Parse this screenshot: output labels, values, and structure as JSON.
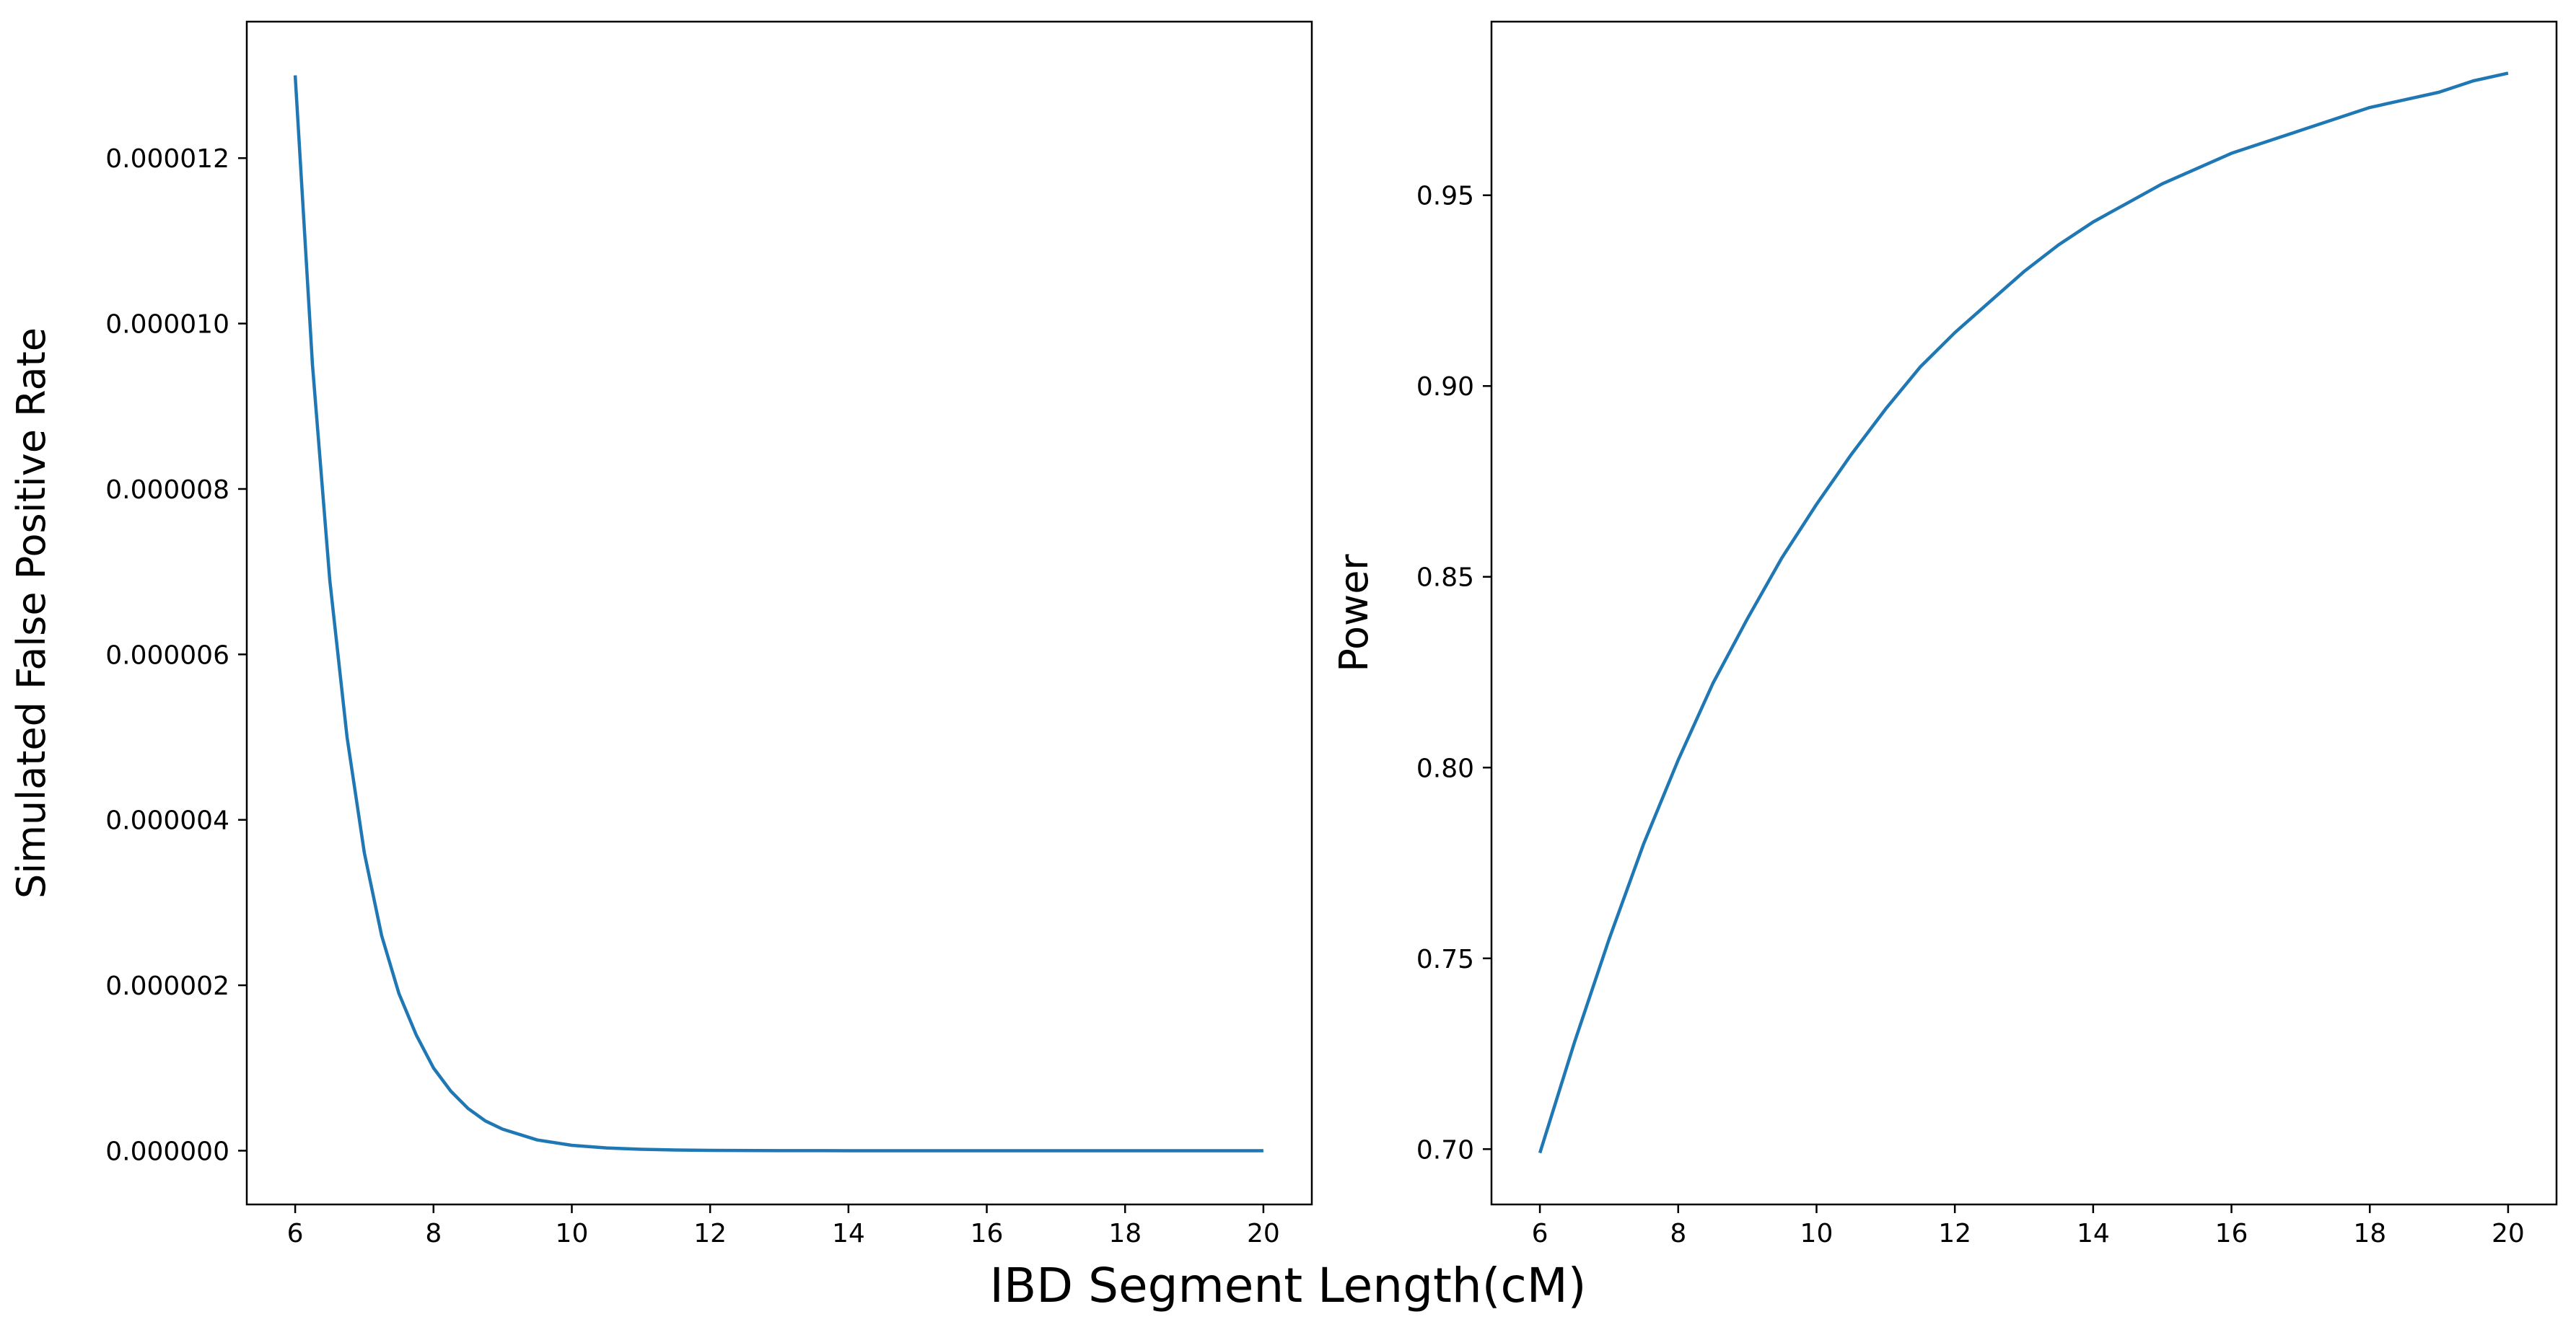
{
  "figure": {
    "xlabel": "IBD Segment Length(cM)"
  },
  "colors": {
    "series": "#1f77b4"
  },
  "chart_data": [
    {
      "type": "line",
      "xlabel": "",
      "ylabel": "Simulated False Positive Rate",
      "xlim": [
        5.3,
        20.7
      ],
      "ylim": [
        -6.5e-07,
        1.365e-05
      ],
      "xticks": [
        6,
        8,
        10,
        12,
        14,
        16,
        18,
        20
      ],
      "xtick_labels": [
        "6",
        "8",
        "10",
        "12",
        "14",
        "16",
        "18",
        "20"
      ],
      "yticks": [
        0,
        2e-06,
        4e-06,
        6e-06,
        8e-06,
        1e-05,
        1.2e-05
      ],
      "ytick_labels": [
        "0.000000",
        "0.000002",
        "0.000004",
        "0.000006",
        "0.000008",
        "0.000010",
        "0.000012"
      ],
      "grid": false,
      "series": [
        {
          "x": [
            6,
            6.25,
            6.5,
            6.75,
            7,
            7.25,
            7.5,
            7.75,
            8,
            8.25,
            8.5,
            8.75,
            9,
            9.5,
            10,
            10.5,
            11,
            11.5,
            12,
            13,
            14,
            15,
            16,
            17,
            18,
            19,
            20
          ],
          "values": [
            1.3e-05,
            9.5e-06,
            6.9e-06,
            5e-06,
            3.6e-06,
            2.6e-06,
            1.9e-06,
            1.4e-06,
            1e-06,
            7.2e-07,
            5.1e-07,
            3.6e-07,
            2.6e-07,
            1.3e-07,
            6.5e-08,
            3.3e-08,
            1.7e-08,
            8e-09,
            4e-09,
            1e-09,
            0,
            0,
            0,
            0,
            0,
            0,
            0
          ]
        }
      ]
    },
    {
      "type": "line",
      "xlabel": "",
      "ylabel": "Power",
      "xlim": [
        5.3,
        20.7
      ],
      "ylim": [
        0.6855,
        0.9955
      ],
      "xticks": [
        6,
        8,
        10,
        12,
        14,
        16,
        18,
        20
      ],
      "xtick_labels": [
        "6",
        "8",
        "10",
        "12",
        "14",
        "16",
        "18",
        "20"
      ],
      "yticks": [
        0.7,
        0.75,
        0.8,
        0.85,
        0.9,
        0.95
      ],
      "ytick_labels": [
        "0.70",
        "0.75",
        "0.80",
        "0.85",
        "0.90",
        "0.95"
      ],
      "grid": false,
      "series": [
        {
          "x": [
            6,
            6.5,
            7,
            7.5,
            8,
            8.5,
            9,
            9.5,
            10,
            10.5,
            11,
            11.5,
            12,
            12.5,
            13,
            13.5,
            14,
            14.5,
            15,
            15.5,
            16,
            16.5,
            17,
            17.5,
            18,
            18.5,
            19,
            19.5,
            20
          ],
          "values": [
            0.699,
            0.728,
            0.755,
            0.78,
            0.802,
            0.822,
            0.839,
            0.855,
            0.869,
            0.882,
            0.894,
            0.905,
            0.914,
            0.922,
            0.93,
            0.937,
            0.943,
            0.948,
            0.953,
            0.957,
            0.961,
            0.964,
            0.967,
            0.97,
            0.973,
            0.975,
            0.977,
            0.98,
            0.982
          ]
        }
      ]
    }
  ]
}
